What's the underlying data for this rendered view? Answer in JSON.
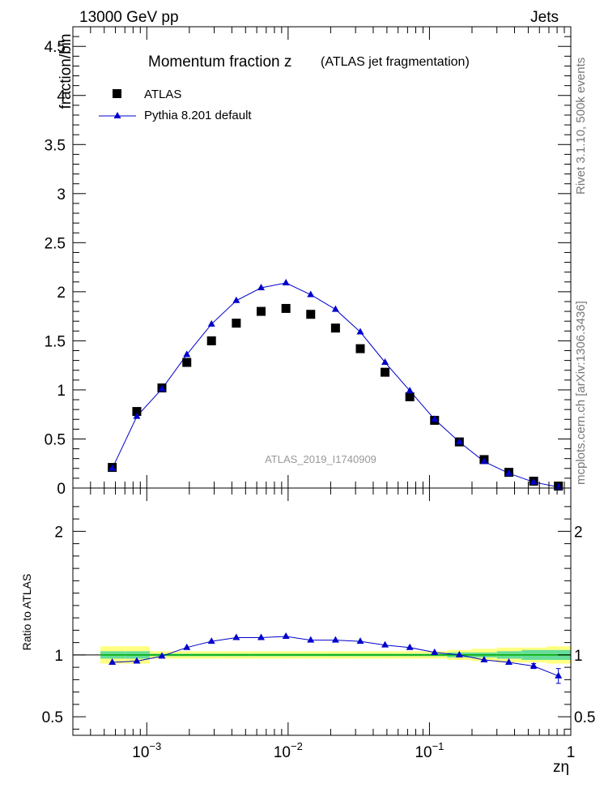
{
  "header": {
    "left": "13000 GeV pp",
    "right": "Jets"
  },
  "side_text": {
    "rivet": "Rivet 3.1.10,  500k events",
    "mcplots": "mcplots.cern.ch [arXiv:1306.3436]"
  },
  "chart_data": [
    {
      "type": "scatter",
      "title": "Momentum fraction z",
      "subtitle": "(ATLAS jet fragmentation)",
      "ylabel": "fraction/bin",
      "xlabel": "",
      "watermark": "ATLAS_2019_I1740909",
      "x_scale": "log",
      "xlim": [
        0.0003,
        1
      ],
      "ylim": [
        0,
        4.7
      ],
      "yticks": [
        "0",
        "0.5",
        "1",
        "1.5",
        "2",
        "2.5",
        "3",
        "3.5",
        "4",
        "4.5"
      ],
      "legend_position": "top-left",
      "colors": {
        "data": "#000000",
        "mc": "#0000cc"
      },
      "series": [
        {
          "name": "ATLAS",
          "style": "markers-square",
          "x": [
            0.00057,
            0.00085,
            0.00128,
            0.00192,
            0.00287,
            0.0043,
            0.00644,
            0.00965,
            0.01445,
            0.02164,
            0.0324,
            0.0485,
            0.0726,
            0.1087,
            0.1627,
            0.2436,
            0.3646,
            0.546,
            0.817
          ],
          "y": [
            0.21,
            0.78,
            1.02,
            1.28,
            1.5,
            1.68,
            1.8,
            1.83,
            1.77,
            1.63,
            1.42,
            1.18,
            0.93,
            0.69,
            0.47,
            0.29,
            0.16,
            0.07,
            0.02
          ]
        },
        {
          "name": "Pythia 8.201 default",
          "style": "line-triangle",
          "x": [
            0.00057,
            0.00085,
            0.00128,
            0.00192,
            0.00287,
            0.0043,
            0.00644,
            0.00965,
            0.01445,
            0.02164,
            0.0324,
            0.0485,
            0.0726,
            0.1087,
            0.1627,
            0.2436,
            0.3646,
            0.546,
            0.817
          ],
          "y": [
            0.2,
            0.73,
            1.01,
            1.36,
            1.67,
            1.91,
            2.04,
            2.09,
            1.97,
            1.82,
            1.59,
            1.28,
            0.99,
            0.7,
            0.47,
            0.27,
            0.15,
            0.06,
            0.01
          ]
        }
      ]
    },
    {
      "type": "line",
      "ylabel": "Ratio to ATLAS",
      "xlabel": "zη",
      "x_scale": "log",
      "xlim": [
        0.0003,
        1
      ],
      "ylim": [
        0.35,
        2.35
      ],
      "yticks": [
        "0.5",
        "1",
        "2"
      ],
      "xticks": [
        {
          "value": 0.001,
          "base": "10",
          "exp": "−3"
        },
        {
          "value": 0.01,
          "base": "10",
          "exp": "−2"
        },
        {
          "value": 0.1,
          "base": "10",
          "exp": "−1"
        },
        {
          "value": 1,
          "base": "1",
          "exp": ""
        }
      ],
      "colors": {
        "band_outer": "#ffff80",
        "band_inner": "#66dd99",
        "reference": "#00aa00",
        "mc": "#0000cc"
      },
      "band_edges": [
        0.00047,
        0.0007,
        0.00105,
        0.00157,
        0.00235,
        0.00352,
        0.00527,
        0.0079,
        0.01183,
        0.01772,
        0.02654,
        0.03976,
        0.05956,
        0.08922,
        0.13365,
        0.2002,
        0.29988,
        0.4492,
        0.6729,
        1.0
      ],
      "band_outer": [
        0.07,
        0.07,
        0.03,
        0.03,
        0.03,
        0.03,
        0.03,
        0.03,
        0.03,
        0.03,
        0.03,
        0.03,
        0.03,
        0.03,
        0.04,
        0.05,
        0.06,
        0.06,
        0.07
      ],
      "band_inner": [
        0.03,
        0.03,
        0.01,
        0.01,
        0.01,
        0.01,
        0.01,
        0.01,
        0.01,
        0.01,
        0.01,
        0.01,
        0.01,
        0.01,
        0.02,
        0.02,
        0.03,
        0.04,
        0.04
      ],
      "series": [
        {
          "name": "Pythia 8.201 default",
          "x": [
            0.00057,
            0.00085,
            0.00128,
            0.00192,
            0.00287,
            0.0043,
            0.00644,
            0.00965,
            0.01445,
            0.02164,
            0.0324,
            0.0485,
            0.0726,
            0.1087,
            0.1627,
            0.2436,
            0.3646,
            0.546,
            0.817
          ],
          "y": [
            0.94,
            0.95,
            0.99,
            1.06,
            1.11,
            1.14,
            1.14,
            1.15,
            1.12,
            1.12,
            1.11,
            1.08,
            1.06,
            1.02,
            1.0,
            0.96,
            0.94,
            0.91,
            0.83
          ],
          "yerr": [
            0.0,
            0.0,
            0.0,
            0.0,
            0.0,
            0.0,
            0.0,
            0.0,
            0.0,
            0.0,
            0.0,
            0.0,
            0.0,
            0.0,
            0.0,
            0.0,
            0.0,
            0.02,
            0.06
          ]
        }
      ]
    }
  ]
}
